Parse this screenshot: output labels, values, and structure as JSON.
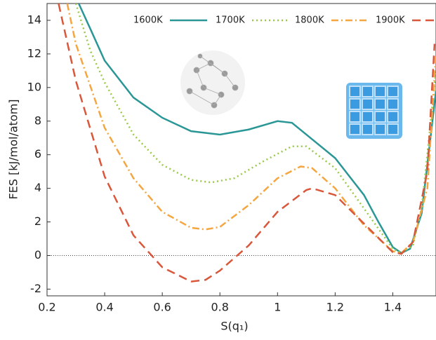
{
  "chart_data": {
    "type": "line",
    "x_label": "S(q₁)",
    "y_label": "FES [kJ/mol/atom]",
    "xlim": [
      0.2,
      1.55
    ],
    "ylim": [
      -2.4,
      15
    ],
    "xticks": [
      0.2,
      0.4,
      0.6,
      0.8,
      1,
      1.2,
      1.4
    ],
    "yticks": [
      -2,
      0,
      2,
      4,
      6,
      8,
      10,
      12,
      14
    ],
    "series": [
      {
        "name": "1600K",
        "color": "#2a9696",
        "dash": "solid",
        "x": [
          0.31,
          0.35,
          0.4,
          0.5,
          0.6,
          0.7,
          0.8,
          0.9,
          1.0,
          1.05,
          1.1,
          1.2,
          1.3,
          1.35,
          1.4,
          1.43,
          1.46,
          1.5,
          1.55
        ],
        "values": [
          15,
          13.5,
          11.6,
          9.4,
          8.2,
          7.4,
          7.2,
          7.5,
          8.0,
          7.9,
          7.2,
          5.8,
          3.6,
          2.0,
          0.5,
          0.15,
          0.4,
          2.5,
          9.8
        ]
      },
      {
        "name": "1700K",
        "color": "#9ac94a",
        "dash": "dotted",
        "x": [
          0.3,
          0.35,
          0.4,
          0.5,
          0.6,
          0.7,
          0.77,
          0.85,
          0.95,
          1.05,
          1.1,
          1.2,
          1.3,
          1.4,
          1.43,
          1.47,
          1.5,
          1.55
        ],
        "values": [
          15,
          12.2,
          10.3,
          7.2,
          5.4,
          4.5,
          4.35,
          4.6,
          5.6,
          6.5,
          6.5,
          5.2,
          2.8,
          0.4,
          0.15,
          0.6,
          2.8,
          11
        ]
      },
      {
        "name": "1800K",
        "color": "#f4a640",
        "dash": "dashdot",
        "x": [
          0.27,
          0.3,
          0.4,
          0.5,
          0.6,
          0.7,
          0.75,
          0.8,
          0.9,
          1.0,
          1.08,
          1.12,
          1.2,
          1.3,
          1.4,
          1.43,
          1.47,
          1.52,
          1.55
        ],
        "values": [
          15,
          12.6,
          7.6,
          4.6,
          2.6,
          1.65,
          1.55,
          1.7,
          3.0,
          4.6,
          5.3,
          5.2,
          4.0,
          1.8,
          0.25,
          0.15,
          0.8,
          4,
          12
        ]
      },
      {
        "name": "1900K",
        "color": "#d9573a",
        "dash": "dashed",
        "x": [
          0.24,
          0.3,
          0.4,
          0.5,
          0.6,
          0.7,
          0.75,
          0.8,
          0.9,
          1.0,
          1.1,
          1.12,
          1.2,
          1.3,
          1.4,
          1.43,
          1.47,
          1.52,
          1.545
        ],
        "values": [
          15,
          10.4,
          4.7,
          1.2,
          -0.7,
          -1.55,
          -1.45,
          -0.9,
          0.6,
          2.6,
          3.9,
          4.0,
          3.6,
          1.9,
          0.2,
          0.1,
          0.8,
          5,
          12.6
        ]
      }
    ]
  }
}
